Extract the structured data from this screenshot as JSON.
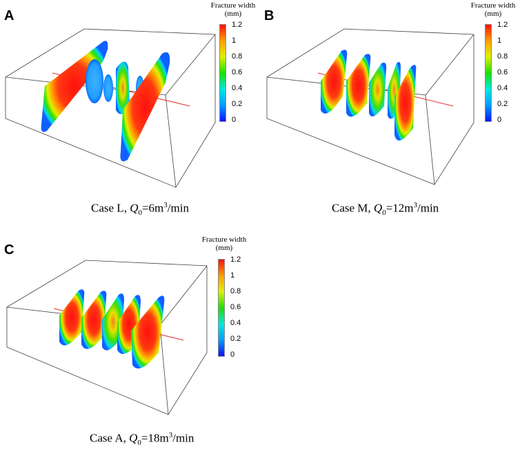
{
  "colorbar": {
    "title_line1": "Fracture width",
    "title_line2": "(mm)",
    "ticks": [
      "1.2",
      "1",
      "0.8",
      "0.6",
      "0.4",
      "0.2",
      "0"
    ],
    "colors": [
      "#1010ff",
      "#00a0ff",
      "#00e8e0",
      "#20e000",
      "#e0f000",
      "#ffa000",
      "#ff1010"
    ]
  },
  "panels": [
    {
      "letter": "A",
      "case": "Case L",
      "q_symbol": "Q",
      "q_sub": "0",
      "q_value": "=6m",
      "q_sup": "3",
      "q_unit": "/min"
    },
    {
      "letter": "B",
      "case": "Case M",
      "q_symbol": "Q",
      "q_sub": "0",
      "q_value": "=12m",
      "q_sup": "3",
      "q_unit": "/min"
    },
    {
      "letter": "C",
      "case": "Case A",
      "q_symbol": "Q",
      "q_sub": "0",
      "q_value": "=18m",
      "q_sup": "3",
      "q_unit": "/min"
    }
  ]
}
